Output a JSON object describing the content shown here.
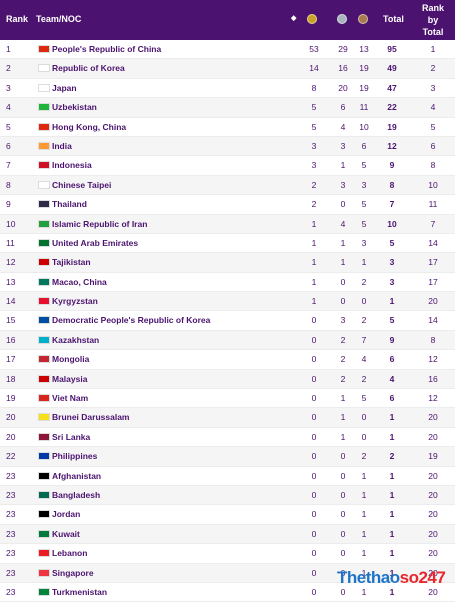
{
  "header": {
    "rank": "Rank",
    "team": "Team/NOC",
    "sort_icon": "sort-icon",
    "total": "Total",
    "rank_by_total": "Rank by Total"
  },
  "colors": {
    "header_bg": "#4b136f",
    "gold": "#c9a227",
    "silver": "#a8b3bd",
    "bronze": "#a77b4f",
    "text": "#4b136f"
  },
  "rows": [
    {
      "rank": "1",
      "name": "People's Republic of China",
      "gold": "53",
      "silver": "29",
      "bronze": "13",
      "total": "95",
      "rank_total": "1",
      "flag": "#de2910"
    },
    {
      "rank": "2",
      "name": "Republic of Korea",
      "gold": "14",
      "silver": "16",
      "bronze": "19",
      "total": "49",
      "rank_total": "2",
      "flag": "#ffffff"
    },
    {
      "rank": "3",
      "name": "Japan",
      "gold": "8",
      "silver": "20",
      "bronze": "19",
      "total": "47",
      "rank_total": "3",
      "flag": "#ffffff"
    },
    {
      "rank": "4",
      "name": "Uzbekistan",
      "gold": "5",
      "silver": "6",
      "bronze": "11",
      "total": "22",
      "rank_total": "4",
      "flag": "#1eb53a"
    },
    {
      "rank": "5",
      "name": "Hong Kong, China",
      "gold": "5",
      "silver": "4",
      "bronze": "10",
      "total": "19",
      "rank_total": "5",
      "flag": "#de2910"
    },
    {
      "rank": "6",
      "name": "India",
      "gold": "3",
      "silver": "3",
      "bronze": "6",
      "total": "12",
      "rank_total": "6",
      "flag": "#ff9933"
    },
    {
      "rank": "7",
      "name": "Indonesia",
      "gold": "3",
      "silver": "1",
      "bronze": "5",
      "total": "9",
      "rank_total": "8",
      "flag": "#ce1126"
    },
    {
      "rank": "8",
      "name": "Chinese Taipei",
      "gold": "2",
      "silver": "3",
      "bronze": "3",
      "total": "8",
      "rank_total": "10",
      "flag": "#ffffff"
    },
    {
      "rank": "9",
      "name": "Thailand",
      "gold": "2",
      "silver": "0",
      "bronze": "5",
      "total": "7",
      "rank_total": "11",
      "flag": "#2d2a4a"
    },
    {
      "rank": "10",
      "name": "Islamic Republic of Iran",
      "gold": "1",
      "silver": "4",
      "bronze": "5",
      "total": "10",
      "rank_total": "7",
      "flag": "#239f40"
    },
    {
      "rank": "11",
      "name": "United Arab Emirates",
      "gold": "1",
      "silver": "1",
      "bronze": "3",
      "total": "5",
      "rank_total": "14",
      "flag": "#00732f"
    },
    {
      "rank": "12",
      "name": "Tajikistan",
      "gold": "1",
      "silver": "1",
      "bronze": "1",
      "total": "3",
      "rank_total": "17",
      "flag": "#cc0000"
    },
    {
      "rank": "13",
      "name": "Macao, China",
      "gold": "1",
      "silver": "0",
      "bronze": "2",
      "total": "3",
      "rank_total": "17",
      "flag": "#00785e"
    },
    {
      "rank": "14",
      "name": "Kyrgyzstan",
      "gold": "1",
      "silver": "0",
      "bronze": "0",
      "total": "1",
      "rank_total": "20",
      "flag": "#e8112d"
    },
    {
      "rank": "15",
      "name": "Democratic People's Republic of Korea",
      "gold": "0",
      "silver": "3",
      "bronze": "2",
      "total": "5",
      "rank_total": "14",
      "flag": "#024fa2"
    },
    {
      "rank": "16",
      "name": "Kazakhstan",
      "gold": "0",
      "silver": "2",
      "bronze": "7",
      "total": "9",
      "rank_total": "8",
      "flag": "#00afca"
    },
    {
      "rank": "17",
      "name": "Mongolia",
      "gold": "0",
      "silver": "2",
      "bronze": "4",
      "total": "6",
      "rank_total": "12",
      "flag": "#c4272f"
    },
    {
      "rank": "18",
      "name": "Malaysia",
      "gold": "0",
      "silver": "2",
      "bronze": "2",
      "total": "4",
      "rank_total": "16",
      "flag": "#cc0001"
    },
    {
      "rank": "19",
      "name": "Viet Nam",
      "gold": "0",
      "silver": "1",
      "bronze": "5",
      "total": "6",
      "rank_total": "12",
      "flag": "#da251d"
    },
    {
      "rank": "20",
      "name": "Brunei Darussalam",
      "gold": "0",
      "silver": "1",
      "bronze": "0",
      "total": "1",
      "rank_total": "20",
      "flag": "#f7e017"
    },
    {
      "rank": "20",
      "name": "Sri Lanka",
      "gold": "0",
      "silver": "1",
      "bronze": "0",
      "total": "1",
      "rank_total": "20",
      "flag": "#8d153a"
    },
    {
      "rank": "22",
      "name": "Philippines",
      "gold": "0",
      "silver": "0",
      "bronze": "2",
      "total": "2",
      "rank_total": "19",
      "flag": "#0038a8"
    },
    {
      "rank": "23",
      "name": "Afghanistan",
      "gold": "0",
      "silver": "0",
      "bronze": "1",
      "total": "1",
      "rank_total": "20",
      "flag": "#000000"
    },
    {
      "rank": "23",
      "name": "Bangladesh",
      "gold": "0",
      "silver": "0",
      "bronze": "1",
      "total": "1",
      "rank_total": "20",
      "flag": "#006a4e"
    },
    {
      "rank": "23",
      "name": "Jordan",
      "gold": "0",
      "silver": "0",
      "bronze": "1",
      "total": "1",
      "rank_total": "20",
      "flag": "#000000"
    },
    {
      "rank": "23",
      "name": "Kuwait",
      "gold": "0",
      "silver": "0",
      "bronze": "1",
      "total": "1",
      "rank_total": "20",
      "flag": "#007a3d"
    },
    {
      "rank": "23",
      "name": "Lebanon",
      "gold": "0",
      "silver": "0",
      "bronze": "1",
      "total": "1",
      "rank_total": "20",
      "flag": "#ed1c24"
    },
    {
      "rank": "23",
      "name": "Singapore",
      "gold": "0",
      "silver": "0",
      "bronze": "1",
      "total": "1",
      "rank_total": "20",
      "flag": "#ef3340"
    },
    {
      "rank": "23",
      "name": "Turkmenistan",
      "gold": "0",
      "silver": "0",
      "bronze": "1",
      "total": "1",
      "rank_total": "20",
      "flag": "#00843d"
    }
  ],
  "watermark": {
    "part1": "Thethao",
    "part2": "so247"
  }
}
